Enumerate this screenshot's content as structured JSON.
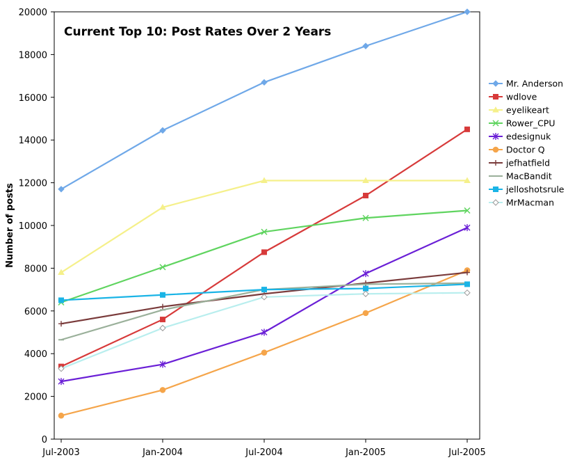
{
  "chart_data": {
    "type": "line",
    "title": "Current Top 10: Post Rates Over 2 Years",
    "xlabel": "",
    "ylabel": "Number of posts",
    "categories": [
      "Jul-2003",
      "Jan-2004",
      "Jul-2004",
      "Jan-2005",
      "Jul-2005"
    ],
    "ylim": [
      0,
      20000
    ],
    "yticks": [
      0,
      2000,
      4000,
      6000,
      8000,
      10000,
      12000,
      14000,
      16000,
      18000,
      20000
    ],
    "grid": false,
    "legend": "right",
    "series": [
      {
        "name": "Mr. Anderson",
        "color": "#6fa8e8",
        "marker": "diamond",
        "values": [
          11700,
          14450,
          16700,
          18400,
          20000
        ]
      },
      {
        "name": "wdlove",
        "color": "#d73a3a",
        "marker": "square",
        "values": [
          3400,
          5600,
          8750,
          11400,
          14500
        ]
      },
      {
        "name": "eyelikeart",
        "color": "#f5f08a",
        "marker": "triangle",
        "values": [
          7800,
          10850,
          12100,
          12100,
          12100
        ]
      },
      {
        "name": "Rower_CPU",
        "color": "#5fd45f",
        "marker": "x",
        "values": [
          6400,
          8050,
          9700,
          10350,
          10700
        ]
      },
      {
        "name": "edesignuk",
        "color": "#6a1fd6",
        "marker": "star",
        "values": [
          2700,
          3500,
          5000,
          7750,
          9900
        ]
      },
      {
        "name": "Doctor Q",
        "color": "#f5a54a",
        "marker": "circle",
        "values": [
          1100,
          2300,
          4050,
          5900,
          7900
        ]
      },
      {
        "name": "jefhatfield",
        "color": "#7a3b3b",
        "marker": "plus",
        "values": [
          5400,
          6200,
          6800,
          7300,
          7800
        ]
      },
      {
        "name": "MacBandit",
        "color": "#9ab09a",
        "marker": "dash",
        "values": [
          4650,
          6050,
          7000,
          7250,
          7300
        ]
      },
      {
        "name": "jelloshotsrule",
        "color": "#1ab4e6",
        "marker": "square",
        "values": [
          6500,
          6750,
          7000,
          7050,
          7250
        ]
      },
      {
        "name": "MrMacman",
        "color": "#b8eeee",
        "marker": "diamond-open",
        "values": [
          3300,
          5200,
          6650,
          6800,
          6850
        ]
      }
    ]
  }
}
